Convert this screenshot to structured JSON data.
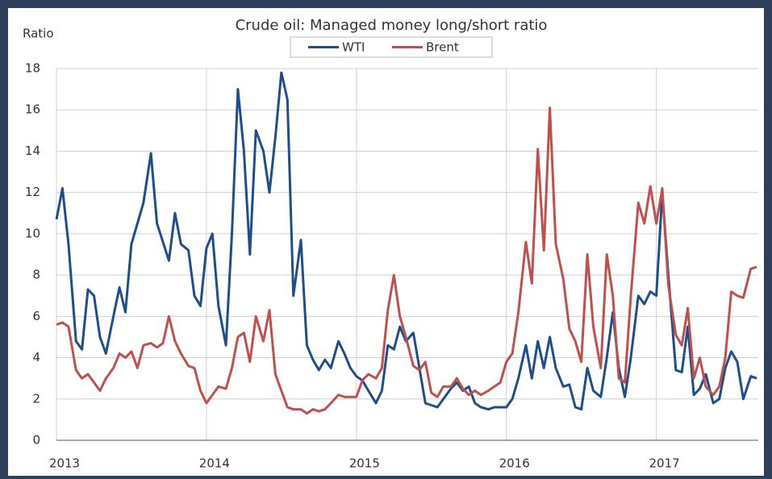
{
  "chart_data": {
    "type": "line",
    "title": "Crude oil: Managed money long/short ratio",
    "ylabel": "Ratio",
    "legend": "top",
    "grid": true,
    "xlim": [
      2013,
      2017.68
    ],
    "xticks": [
      2013,
      2014,
      2015,
      2016,
      2017
    ],
    "ylim": [
      0,
      18
    ],
    "yticks": [
      0,
      2,
      4,
      6,
      8,
      10,
      12,
      14,
      16,
      18
    ],
    "x": [
      2013,
      2013.04,
      2013.08,
      2013.13,
      2013.17,
      2013.21,
      2013.25,
      2013.29,
      2013.33,
      2013.38,
      2013.42,
      2013.46,
      2013.5,
      2013.54,
      2013.58,
      2013.63,
      2013.67,
      2013.71,
      2013.75,
      2013.79,
      2013.83,
      2013.88,
      2013.92,
      2013.96,
      2014,
      2014.04,
      2014.08,
      2014.13,
      2014.17,
      2014.21,
      2014.25,
      2014.29,
      2014.33,
      2014.38,
      2014.42,
      2014.46,
      2014.5,
      2014.54,
      2014.58,
      2014.63,
      2014.67,
      2014.71,
      2014.75,
      2014.79,
      2014.83,
      2014.88,
      2014.92,
      2014.96,
      2015,
      2015.04,
      2015.08,
      2015.13,
      2015.17,
      2015.21,
      2015.25,
      2015.29,
      2015.33,
      2015.38,
      2015.42,
      2015.46,
      2015.5,
      2015.54,
      2015.58,
      2015.63,
      2015.67,
      2015.71,
      2015.75,
      2015.79,
      2015.83,
      2015.88,
      2015.92,
      2015.96,
      2016,
      2016.04,
      2016.08,
      2016.13,
      2016.17,
      2016.21,
      2016.25,
      2016.29,
      2016.33,
      2016.38,
      2016.42,
      2016.46,
      2016.5,
      2016.54,
      2016.58,
      2016.63,
      2016.67,
      2016.71,
      2016.75,
      2016.79,
      2016.83,
      2016.88,
      2016.92,
      2016.96,
      2017,
      2017.04,
      2017.08,
      2017.13,
      2017.17,
      2017.21,
      2017.25,
      2017.29,
      2017.33,
      2017.38,
      2017.42,
      2017.46,
      2017.5,
      2017.54,
      2017.58,
      2017.63,
      2017.67
    ],
    "series": [
      {
        "name": "WTI",
        "color": "#1f4e8c",
        "values": [
          10.7,
          12.2,
          9.5,
          4.8,
          4.4,
          7.3,
          7.0,
          5.0,
          4.2,
          6.0,
          7.4,
          6.2,
          9.5,
          10.5,
          11.5,
          13.9,
          10.5,
          9.6,
          8.7,
          11.0,
          9.5,
          9.2,
          7.0,
          6.5,
          9.3,
          10.0,
          6.5,
          4.6,
          10.0,
          17.0,
          14.0,
          9.0,
          15.0,
          14.0,
          12.0,
          14.7,
          17.8,
          16.5,
          7.0,
          9.7,
          4.6,
          3.9,
          3.4,
          3.9,
          3.5,
          4.8,
          4.2,
          3.5,
          3.1,
          2.9,
          2.4,
          1.8,
          2.4,
          4.6,
          4.4,
          5.5,
          4.8,
          5.2,
          3.5,
          1.8,
          1.7,
          1.6,
          2.0,
          2.5,
          2.8,
          2.4,
          2.6,
          1.8,
          1.6,
          1.5,
          1.6,
          1.6,
          1.6,
          2.0,
          3.0,
          4.6,
          3.0,
          4.8,
          3.5,
          5.0,
          3.5,
          2.6,
          2.7,
          1.6,
          1.5,
          3.5,
          2.4,
          2.1,
          4.0,
          6.2,
          3.5,
          2.1,
          4.0,
          7.0,
          6.6,
          7.2,
          7.0,
          12.0,
          8.0,
          3.4,
          3.3,
          5.5,
          2.2,
          2.5,
          3.2,
          1.8,
          2.0,
          3.5,
          4.3,
          3.8,
          2.0,
          3.1,
          3.0
        ]
      },
      {
        "name": "Brent",
        "color": "#c0504d",
        "values": [
          5.6,
          5.7,
          5.5,
          3.4,
          3.0,
          3.2,
          2.8,
          2.4,
          3.0,
          3.5,
          4.2,
          4.0,
          4.3,
          3.5,
          4.6,
          4.7,
          4.5,
          4.7,
          6.0,
          4.8,
          4.2,
          3.6,
          3.5,
          2.4,
          1.8,
          2.2,
          2.6,
          2.5,
          3.5,
          5.0,
          5.2,
          3.8,
          6.0,
          4.8,
          6.3,
          3.2,
          2.4,
          1.6,
          1.5,
          1.5,
          1.3,
          1.5,
          1.4,
          1.5,
          1.8,
          2.2,
          2.1,
          2.1,
          2.1,
          2.9,
          3.2,
          3.0,
          3.5,
          6.3,
          8.0,
          6.0,
          5.0,
          3.6,
          3.4,
          3.8,
          2.3,
          2.1,
          2.6,
          2.6,
          3.0,
          2.5,
          2.2,
          2.4,
          2.2,
          2.4,
          2.6,
          2.8,
          3.8,
          4.2,
          6.2,
          9.6,
          7.6,
          14.1,
          9.2,
          16.1,
          9.5,
          7.8,
          5.4,
          4.8,
          3.8,
          9.0,
          5.5,
          3.5,
          9.0,
          7.0,
          3.0,
          2.8,
          7.0,
          11.5,
          10.5,
          12.3,
          10.5,
          12.2,
          7.5,
          5.1,
          4.6,
          6.4,
          3.0,
          4.0,
          2.6,
          2.2,
          2.6,
          4.0,
          7.2,
          7.0,
          6.9,
          8.3,
          8.4
        ]
      }
    ]
  }
}
